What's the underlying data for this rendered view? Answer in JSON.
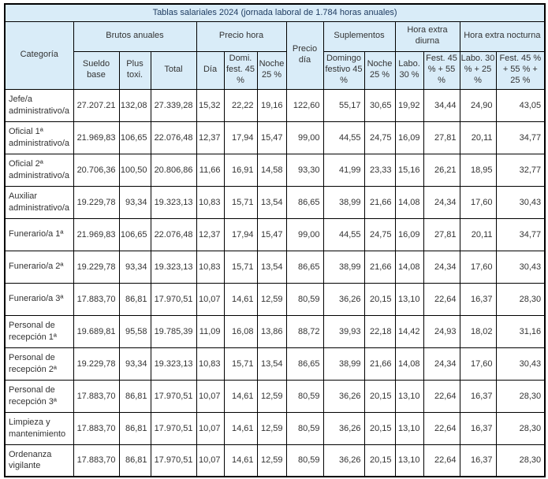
{
  "title": "Tablas salariales 2024 (jornada laboral de 1.784 horas anuales)",
  "colors": {
    "header_bg": "#d9ecf8",
    "title_text": "#1f3c61",
    "body_text": "#333333",
    "border": "#000000"
  },
  "header": {
    "categoria": "Categoría",
    "precio_dia": "Precio día",
    "groups": [
      {
        "label": "Brutos anuales"
      },
      {
        "label": "Precio hora"
      },
      {
        "label": "Suplementos"
      },
      {
        "label": "Hora extra diurna"
      },
      {
        "label": "Hora extra nocturna"
      }
    ],
    "subcols": [
      "Sueldo base",
      "Plus toxi.",
      "Total",
      "Día",
      "Domi. fest. 45 %",
      "Noche 25 %",
      "Domingo festivo 45 %",
      "Noche 25 %",
      "Labo. 30 %",
      "Fest. 45 % + 55 %",
      "Labo. 30 % + 25 %",
      "Fest. 45 % + 55 % + 25 %"
    ]
  },
  "rows": [
    {
      "categoria": "Jefe/a administrativo/a",
      "values": [
        "27.207.21",
        "132,08",
        "27.339,28",
        "15,32",
        "22,22",
        "19,16",
        "122,60",
        "55,17",
        "30,65",
        "19,92",
        "34,44",
        "24,90",
        "43,05"
      ]
    },
    {
      "categoria": "Oficial 1ª administrativo/a",
      "values": [
        "21.969,83",
        "106,65",
        "22.076,48",
        "12,37",
        "17,94",
        "15,47",
        "99,00",
        "44,55",
        "24,75",
        "16,09",
        "27,81",
        "20,11",
        "34,77"
      ]
    },
    {
      "categoria": "Oficial 2ª administrativo/a",
      "values": [
        "20.706,36",
        "100,50",
        "20.806,86",
        "11,66",
        "16,91",
        "14,58",
        "93,30",
        "41,99",
        "23,33",
        "15,16",
        "26,21",
        "18,95",
        "32,77"
      ]
    },
    {
      "categoria": "Auxiliar administrativo/a",
      "values": [
        "19.229,78",
        "93,34",
        "19.323,13",
        "10,83",
        "15,71",
        "13,54",
        "86,65",
        "38,99",
        "21,66",
        "14,08",
        "24,34",
        "17,60",
        "30,43"
      ]
    },
    {
      "categoria": "Funerario/a 1ª",
      "values": [
        "21.969,83",
        "106,65",
        "22.076,48",
        "12,37",
        "17,94",
        "15,47",
        "99,00",
        "44,55",
        "24,75",
        "16,09",
        "27,81",
        "20,11",
        "34,77"
      ]
    },
    {
      "categoria": "Funerario/a 2ª",
      "values": [
        "19.229,78",
        "93,34",
        "19.323,13",
        "10,83",
        "15,71",
        "13,54",
        "86,65",
        "38,99",
        "21,66",
        "14,08",
        "24,34",
        "17,60",
        "30,43"
      ]
    },
    {
      "categoria": "Funerario/a 3ª",
      "values": [
        "17.883,70",
        "86,81",
        "17.970,51",
        "10,07",
        "14,61",
        "12,59",
        "80,59",
        "36,26",
        "20,15",
        "13,10",
        "22,64",
        "16,37",
        "28,30"
      ]
    },
    {
      "categoria": "Personal de recepción 1ª",
      "values": [
        "19.689,81",
        "95,58",
        "19.785,39",
        "11,09",
        "16,08",
        "13,86",
        "88,72",
        "39,93",
        "22,18",
        "14,42",
        "24,93",
        "18,02",
        "31,16"
      ]
    },
    {
      "categoria": "Personal de recepción 2ª",
      "values": [
        "19.229,78",
        "93,34",
        "19.323,13",
        "10,83",
        "15,71",
        "13,54",
        "86,65",
        "38,99",
        "21,66",
        "14,08",
        "24,34",
        "17,60",
        "30,43"
      ]
    },
    {
      "categoria": "Personal de recepción 3ª",
      "values": [
        "17.883,70",
        "86,81",
        "17.970,51",
        "10,07",
        "14,61",
        "12,59",
        "80,59",
        "36,26",
        "20,15",
        "13,10",
        "22,64",
        "16,37",
        "28,30"
      ]
    },
    {
      "categoria": "Limpieza y mantenimiento",
      "values": [
        "17.883,70",
        "86,81",
        "17.970,51",
        "10,07",
        "14,61",
        "12,59",
        "80,59",
        "36,26",
        "20,15",
        "13,10",
        "22,64",
        "16,37",
        "28,30"
      ]
    },
    {
      "categoria": "Ordenanza vigilante",
      "values": [
        "17.883,70",
        "86,81",
        "17.970,51",
        "10,07",
        "14,61",
        "12,59",
        "80,59",
        "36,26",
        "20,15",
        "13,10",
        "22,64",
        "16,37",
        "28,30"
      ]
    }
  ]
}
